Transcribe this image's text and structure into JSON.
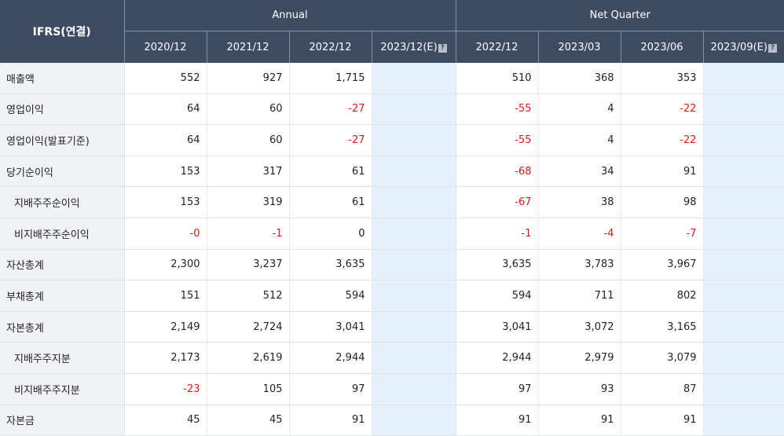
{
  "header": {
    "corner": "IFRS(연결)",
    "annual_label": "Annual",
    "quarter_label": "Net Quarter",
    "annual_periods": [
      "2020/12",
      "2021/12",
      "2022/12",
      "2023/12(E)"
    ],
    "quarter_periods": [
      "2022/12",
      "2023/03",
      "2023/06",
      "2023/09(E)"
    ],
    "estimate_icon": "estimate-info-icon"
  },
  "colors": {
    "header_bg": "#3d4b63",
    "label_bg": "#f0f2f5",
    "estimate_bg": "#e5f1fa",
    "negative": "#e01818"
  },
  "rows": [
    {
      "label": "매출액",
      "indent": false,
      "annual": [
        "552",
        "927",
        "1,715",
        ""
      ],
      "quarter": [
        "510",
        "368",
        "353",
        ""
      ]
    },
    {
      "label": "영업이익",
      "indent": false,
      "annual": [
        "64",
        "60",
        "-27",
        ""
      ],
      "quarter": [
        "-55",
        "4",
        "-22",
        ""
      ]
    },
    {
      "label": "영업이익(발표기준)",
      "indent": false,
      "annual": [
        "64",
        "60",
        "-27",
        ""
      ],
      "quarter": [
        "-55",
        "4",
        "-22",
        ""
      ]
    },
    {
      "label": "당기순이익",
      "indent": false,
      "annual": [
        "153",
        "317",
        "61",
        ""
      ],
      "quarter": [
        "-68",
        "34",
        "91",
        ""
      ]
    },
    {
      "label": "지배주주순이익",
      "indent": true,
      "annual": [
        "153",
        "319",
        "61",
        ""
      ],
      "quarter": [
        "-67",
        "38",
        "98",
        ""
      ]
    },
    {
      "label": "비지배주주순이익",
      "indent": true,
      "annual": [
        "-0",
        "-1",
        "0",
        ""
      ],
      "quarter": [
        "-1",
        "-4",
        "-7",
        ""
      ]
    },
    {
      "label": "자산총계",
      "indent": false,
      "annual": [
        "2,300",
        "3,237",
        "3,635",
        ""
      ],
      "quarter": [
        "3,635",
        "3,783",
        "3,967",
        ""
      ]
    },
    {
      "label": "부채총계",
      "indent": false,
      "annual": [
        "151",
        "512",
        "594",
        ""
      ],
      "quarter": [
        "594",
        "711",
        "802",
        ""
      ]
    },
    {
      "label": "자본총계",
      "indent": false,
      "annual": [
        "2,149",
        "2,724",
        "3,041",
        ""
      ],
      "quarter": [
        "3,041",
        "3,072",
        "3,165",
        ""
      ]
    },
    {
      "label": "지배주주지분",
      "indent": true,
      "annual": [
        "2,173",
        "2,619",
        "2,944",
        ""
      ],
      "quarter": [
        "2,944",
        "2,979",
        "3,079",
        ""
      ]
    },
    {
      "label": "비지배주주지분",
      "indent": true,
      "annual": [
        "-23",
        "105",
        "97",
        ""
      ],
      "quarter": [
        "97",
        "93",
        "87",
        ""
      ]
    },
    {
      "label": "자본금",
      "indent": false,
      "annual": [
        "45",
        "45",
        "91",
        ""
      ],
      "quarter": [
        "91",
        "91",
        "91",
        ""
      ]
    }
  ]
}
